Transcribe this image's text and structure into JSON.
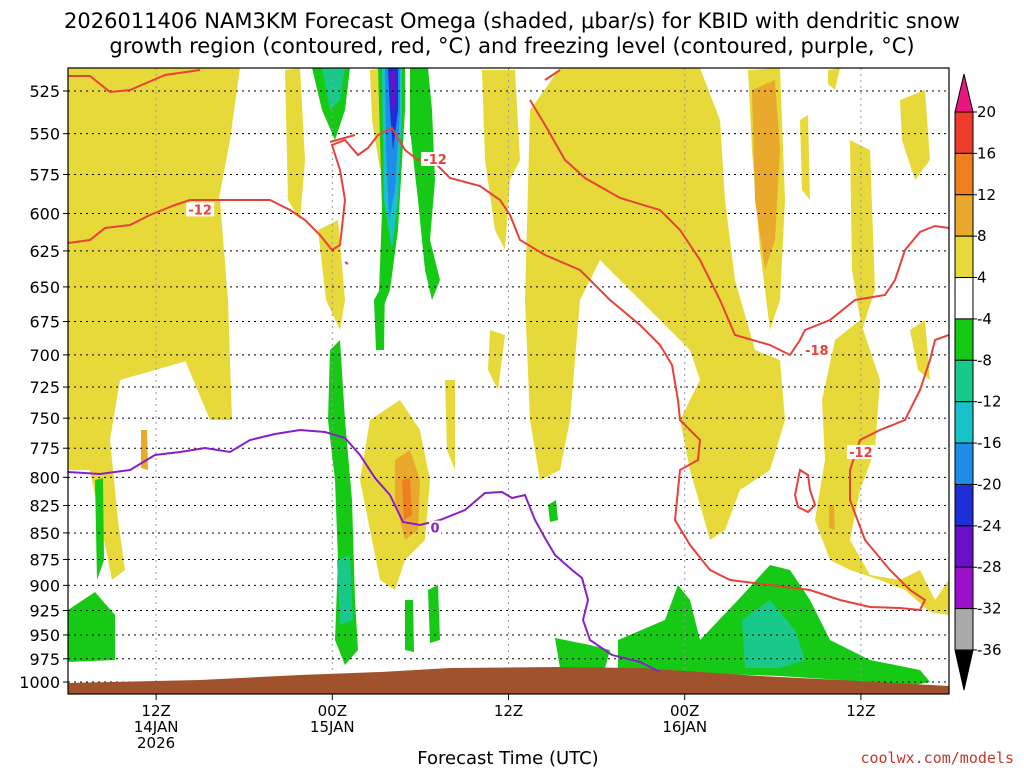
{
  "chart_data": {
    "type": "heatmap",
    "title_lines": [
      "2026011406 NAM3KM Forecast Omega (shaded, μbar/s) for KBID with dendritic snow",
      "growth region (contoured, red, °C) and freezing level (contoured, purple, °C)"
    ],
    "xlabel": "Forecast Time (UTC)",
    "credit": "coolwx.com/models",
    "y_ticks": [
      525,
      550,
      575,
      600,
      625,
      650,
      675,
      700,
      725,
      750,
      775,
      800,
      825,
      850,
      875,
      900,
      925,
      950,
      975,
      1000
    ],
    "x_ticks": [
      {
        "hour": 6,
        "lines": [
          "12Z",
          "14JAN",
          "2026"
        ]
      },
      {
        "hour": 18,
        "lines": [
          "00Z",
          "15JAN"
        ]
      },
      {
        "hour": 30,
        "lines": [
          "12Z"
        ]
      },
      {
        "hour": 42,
        "lines": [
          "00Z",
          "16JAN"
        ]
      },
      {
        "hour": 54,
        "lines": [
          "12Z"
        ]
      }
    ],
    "x_range_hours": [
      0,
      60
    ],
    "colorbar": {
      "labels": [
        "20",
        "16",
        "12",
        "8",
        "4",
        "-4",
        "-8",
        "-12",
        "-16",
        "-20",
        "-24",
        "-28",
        "-32",
        "-36"
      ],
      "colors": [
        "#e8177f",
        "#ee3b2c",
        "#f07f1f",
        "#e8a92c",
        "#e8d93a",
        "#ffffff",
        "#15c915",
        "#18c98a",
        "#19c2c9",
        "#1e8ee8",
        "#1f2fd8",
        "#6a10c9",
        "#9b10c9",
        "#a9a9a9"
      ],
      "bottom_color": "#000000"
    },
    "contours": {
      "dgz": [
        {
          "label": "-12",
          "t": 9,
          "p": 598
        },
        {
          "label": "-12",
          "t": 25,
          "p": 566
        },
        {
          "label": "-18",
          "t": 51,
          "p": 697
        },
        {
          "label": "-12",
          "t": 54,
          "p": 779
        }
      ],
      "freezing": [
        {
          "label": "0",
          "t": 25,
          "p": 846
        }
      ]
    },
    "colors": {
      "dgz_line": "#e8413a",
      "freezing_line": "#8a1fc7",
      "terrain": "#a0522d"
    }
  }
}
